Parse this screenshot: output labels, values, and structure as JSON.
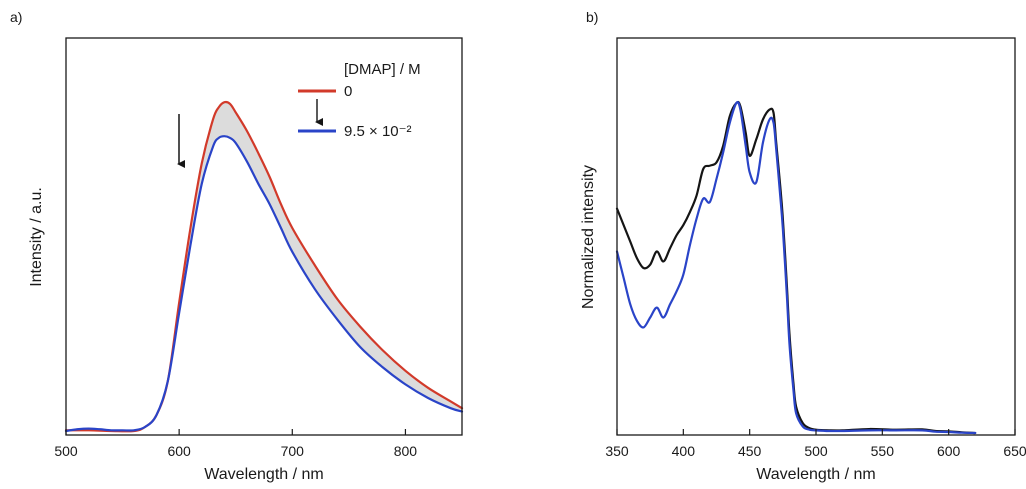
{
  "colors": {
    "red": "#d23a2a",
    "blue": "#2a44c8",
    "black": "#151515",
    "fill": "#dcdcdc"
  },
  "chart_data": [
    {
      "panel": "a)",
      "type": "line",
      "xlabel": "Wavelength / nm",
      "ylabel": "Intensity / a.u.",
      "xlim": [
        500,
        850
      ],
      "ylim": [
        0,
        100
      ],
      "xticks": [
        "500",
        "600",
        "700",
        "800"
      ],
      "y_tick_labels": false,
      "legend_title": "[DMAP] / M",
      "legend_from": "0",
      "legend_to": "9.5 × 10⁻²",
      "legend_placement": "top-right",
      "shaded_between_series": true,
      "annotation": "downward arrow near 600 nm",
      "series": [
        {
          "label": "0",
          "color": "#d23a2a",
          "x": [
            500,
            520,
            540,
            560,
            570,
            580,
            590,
            600,
            610,
            620,
            630,
            635,
            640,
            645,
            650,
            660,
            670,
            680,
            690,
            700,
            720,
            740,
            760,
            780,
            800,
            820,
            840,
            850
          ],
          "y": [
            0.5,
            0.5,
            0.3,
            0.3,
            1.5,
            5,
            15,
            38,
            60,
            79,
            92,
            95.5,
            97,
            96.5,
            94,
            88.5,
            82,
            75,
            67,
            60,
            49,
            39,
            31,
            24,
            18,
            13,
            9,
            7
          ]
        },
        {
          "label": "9.5 × 10⁻²",
          "color": "#2a44c8",
          "x": [
            500,
            510,
            520,
            530,
            540,
            550,
            560,
            570,
            580,
            590,
            600,
            610,
            620,
            630,
            635,
            640,
            645,
            650,
            660,
            670,
            680,
            690,
            700,
            720,
            740,
            760,
            780,
            800,
            820,
            840,
            850
          ],
          "y": [
            0.3,
            0.8,
            1,
            0.8,
            0.5,
            0.5,
            0.5,
            1.5,
            5,
            15,
            35,
            55,
            73,
            84,
            86.5,
            87,
            86.5,
            85,
            79.5,
            73,
            67,
            60,
            53,
            42,
            33,
            25,
            19,
            14,
            10,
            7,
            6
          ]
        }
      ]
    },
    {
      "panel": "b)",
      "type": "line",
      "xlabel": "Wavelength / nm",
      "ylabel": "Normalized intensity",
      "xlim": [
        350,
        650
      ],
      "ylim": [
        0,
        100
      ],
      "xticks": [
        "350",
        "400",
        "450",
        "500",
        "550",
        "600",
        "650"
      ],
      "y_tick_labels": false,
      "series": [
        {
          "label": "",
          "color": "#151515",
          "x": [
            350,
            355,
            360,
            365,
            370,
            375,
            380,
            385,
            390,
            395,
            400,
            405,
            410,
            415,
            420,
            425,
            430,
            435,
            440,
            443,
            447,
            450,
            455,
            460,
            465,
            468,
            470,
            473,
            475,
            478,
            480,
            483,
            485,
            490,
            495,
            500,
            510,
            520,
            540,
            560,
            580,
            590,
            600,
            610,
            620
          ],
          "y": [
            68,
            63,
            58,
            53,
            50,
            51,
            55,
            52,
            56,
            60,
            63,
            67,
            72,
            80,
            81,
            82,
            87,
            96,
            100,
            99,
            91,
            84,
            89,
            95,
            98,
            97,
            88,
            75,
            65,
            45,
            30,
            15,
            8,
            3,
            1.5,
            1,
            0.8,
            0.8,
            1.2,
            1,
            1.1,
            0.6,
            0.5,
            0.2,
            0
          ]
        },
        {
          "label": "",
          "color": "#2a44c8",
          "x": [
            350,
            355,
            360,
            365,
            370,
            375,
            380,
            385,
            390,
            395,
            400,
            405,
            410,
            415,
            420,
            425,
            430,
            435,
            440,
            443,
            447,
            450,
            455,
            460,
            465,
            468,
            470,
            473,
            475,
            478,
            480,
            483,
            485,
            490,
            495,
            500,
            510,
            520,
            540,
            560,
            580,
            590,
            600,
            610,
            620
          ],
          "y": [
            55,
            47,
            39,
            34,
            32,
            35,
            38,
            35,
            39,
            43,
            48,
            57,
            65,
            71,
            70,
            77,
            85,
            94,
            100,
            98,
            87,
            79,
            76,
            88,
            95,
            94,
            86,
            72,
            62,
            42,
            27,
            13,
            6,
            2,
            1,
            0.8,
            0.6,
            0.6,
            0.8,
            0.8,
            0.8,
            0.4,
            0.3,
            0.1,
            0
          ]
        }
      ]
    }
  ]
}
